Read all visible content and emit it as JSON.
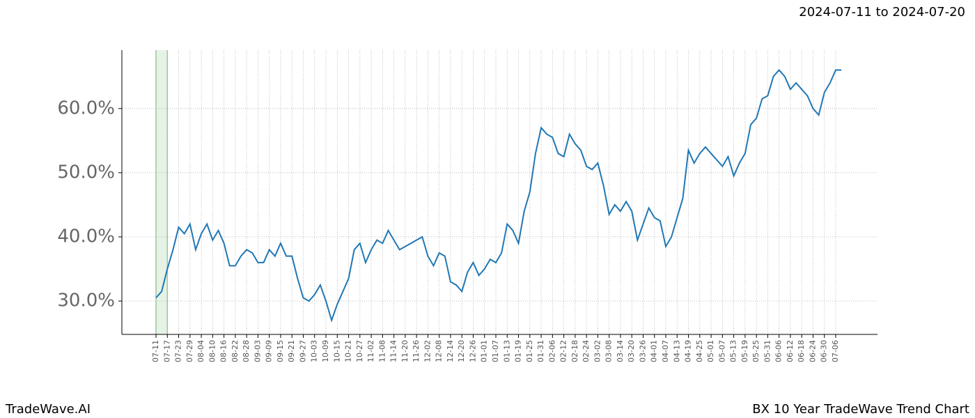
{
  "chart_data": {
    "type": "line",
    "title": "2024-07-11 to 2024-07-20",
    "footer_left": "TradeWave.AI",
    "footer_right": "BX 10 Year TradeWave Trend Chart",
    "categories": [
      "07-11",
      null,
      "07-17",
      null,
      "07-23",
      null,
      "07-29",
      null,
      "08-04",
      null,
      "08-10",
      null,
      "08-16",
      null,
      "08-22",
      null,
      "08-28",
      null,
      "09-03",
      null,
      "09-09",
      null,
      "09-15",
      null,
      "09-21",
      null,
      "09-27",
      null,
      "10-03",
      null,
      "10-09",
      null,
      "10-15",
      null,
      "10-21",
      null,
      "10-27",
      null,
      "11-02",
      null,
      "11-08",
      null,
      "11-14",
      null,
      "11-20",
      null,
      "11-26",
      null,
      "12-02",
      null,
      "12-08",
      null,
      "12-14",
      null,
      "12-20",
      null,
      "12-26",
      null,
      "01-01",
      null,
      "01-07",
      null,
      "01-13",
      null,
      "01-19",
      null,
      "01-25",
      null,
      "01-31",
      null,
      "02-06",
      null,
      "02-12",
      null,
      "02-18",
      null,
      "02-24",
      null,
      "03-02",
      null,
      "03-08",
      null,
      "03-14",
      null,
      "03-20",
      null,
      "03-26",
      null,
      "04-01",
      null,
      "04-07",
      null,
      "04-13",
      null,
      "04-19",
      null,
      "04-25",
      null,
      "05-01",
      null,
      "05-07",
      null,
      "05-13",
      null,
      "05-19",
      null,
      "05-25",
      null,
      "05-31",
      null,
      "06-06",
      null,
      "06-12",
      null,
      "06-18",
      null,
      "06-24",
      null,
      "06-30",
      null,
      "07-06",
      null
    ],
    "values": [
      30.5,
      31.5,
      35,
      38,
      41.5,
      40.5,
      42,
      38,
      40.5,
      42,
      39.5,
      41,
      39,
      35.5,
      35.5,
      37,
      38,
      37.5,
      36,
      36,
      38,
      37,
      39,
      37,
      37,
      33.5,
      30.5,
      30,
      31,
      32.5,
      30,
      27,
      29.5,
      31.5,
      33.5,
      38,
      39,
      36,
      38,
      39.5,
      39,
      41,
      39.5,
      38,
      38.5,
      39,
      39.5,
      40,
      37,
      35.5,
      37.5,
      37,
      33,
      32.5,
      31.5,
      34.5,
      36,
      34,
      35,
      36.5,
      36,
      37.5,
      42,
      41,
      39,
      44,
      47,
      53,
      57,
      56,
      55.5,
      53,
      52.5,
      56,
      54.5,
      53.5,
      51,
      50.5,
      51.5,
      48,
      43.5,
      45,
      44,
      45.5,
      44,
      39.5,
      42,
      44.5,
      43,
      42.5,
      38.5,
      40,
      43,
      46,
      53.5,
      51.5,
      53,
      54,
      53,
      52,
      51,
      52.5,
      49.5,
      51.5,
      53,
      57.5,
      58.5,
      61.5,
      62,
      65,
      66,
      65,
      63,
      64,
      63,
      62,
      60,
      59,
      62.5,
      64,
      66,
      66
    ],
    "color": "#1f77b4",
    "highlight": [
      "07-11",
      "07-17"
    ],
    "highlight_color": "#d5ead5",
    "ylim": [
      24.8,
      69.1
    ],
    "yticks": [
      {
        "value": 30,
        "label": "30.0%"
      },
      {
        "value": 40,
        "label": "40.0%"
      },
      {
        "value": 50,
        "label": "50.0%"
      },
      {
        "value": 60,
        "label": "60.0%"
      }
    ],
    "grid": true
  }
}
